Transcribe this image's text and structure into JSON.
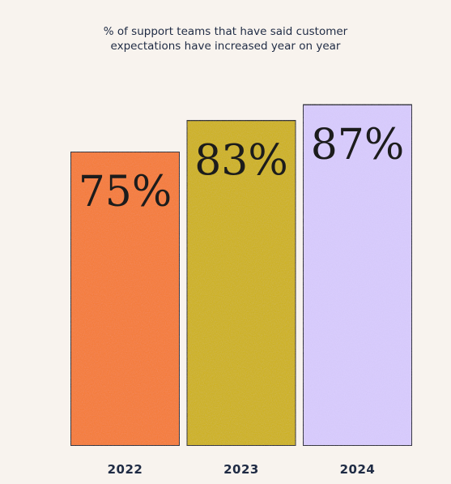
{
  "header": {
    "title_line1": "% of support teams that have said customer",
    "title_line2": "expectations have increased year on year"
  },
  "chart_data": {
    "type": "bar",
    "title": "% of support teams that have said customer expectations have increased year on year",
    "categories": [
      "2022",
      "2023",
      "2024"
    ],
    "values": [
      75,
      83,
      87
    ],
    "value_labels": [
      "75%",
      "83%",
      "87%"
    ],
    "colors": [
      "#f77a32",
      "#cfb200",
      "#d9ccff"
    ],
    "outline_color": "#1f1f2e",
    "background": "#f8f3ee",
    "ylim": [
      0,
      100
    ],
    "grid": false,
    "legend": "none"
  }
}
